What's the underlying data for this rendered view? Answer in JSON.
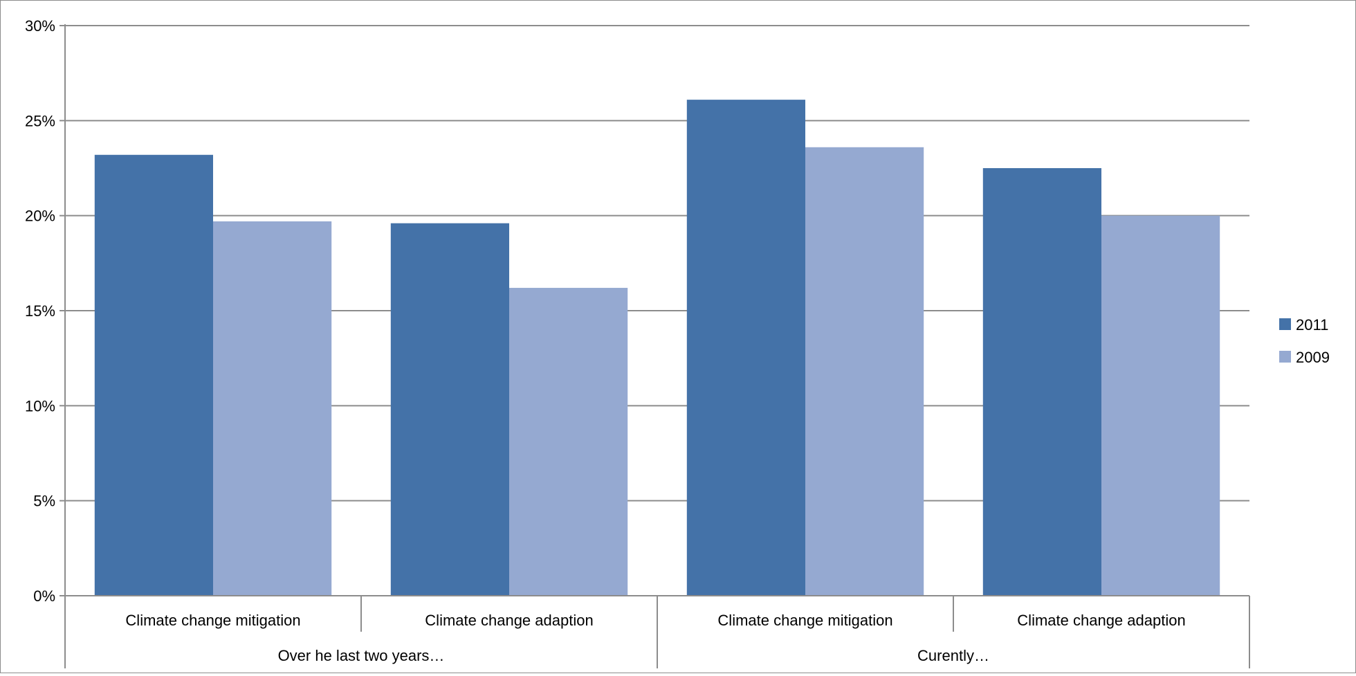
{
  "chart_data": {
    "type": "bar",
    "title": "",
    "xlabel": "",
    "ylabel": "",
    "ylim": [
      0,
      30
    ],
    "yticks": [
      0,
      5,
      10,
      15,
      20,
      25,
      30
    ],
    "ytick_labels": [
      "0%",
      "5%",
      "10%",
      "15%",
      "20%",
      "25%",
      "30%"
    ],
    "grid": true,
    "legend_position": "right",
    "groups": [
      {
        "label": "Over he last two years…",
        "categories": [
          "Climate change mitigation",
          "Climate change adaption"
        ]
      },
      {
        "label": "Curently…",
        "categories": [
          "Climate change mitigation",
          "Climate change adaption"
        ]
      }
    ],
    "categories": [
      "Climate change mitigation",
      "Climate change adaption",
      "Climate change mitigation",
      "Climate change adaption"
    ],
    "series": [
      {
        "name": "2011",
        "color": "#4472A8",
        "values": [
          23.2,
          19.6,
          26.1,
          22.5
        ]
      },
      {
        "name": "2009",
        "color": "#95A9D1",
        "values": [
          19.7,
          16.2,
          23.6,
          20.0
        ]
      }
    ]
  },
  "colors": {
    "grid": "#8c8c8c",
    "axis": "#8c8c8c",
    "background": "#ffffff"
  }
}
